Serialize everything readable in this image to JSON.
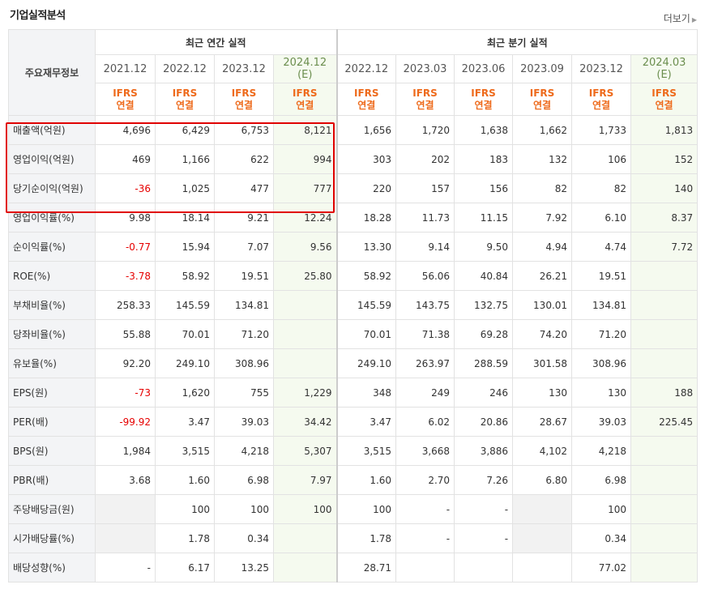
{
  "title": "기업실적분석",
  "more_label": "더보기",
  "header": {
    "label_col": "주요재무정보",
    "groups": [
      {
        "label": "최근 연간 실적"
      },
      {
        "label": "최근 분기 실적"
      }
    ],
    "periods": [
      {
        "label": "2021.12",
        "est": ""
      },
      {
        "label": "2022.12",
        "est": ""
      },
      {
        "label": "2023.12",
        "est": ""
      },
      {
        "label": "2024.12",
        "est": "(E)"
      },
      {
        "label": "2022.12",
        "est": ""
      },
      {
        "label": "2023.03",
        "est": ""
      },
      {
        "label": "2023.06",
        "est": ""
      },
      {
        "label": "2023.09",
        "est": ""
      },
      {
        "label": "2023.12",
        "est": ""
      },
      {
        "label": "2024.03",
        "est": "(E)"
      }
    ],
    "ifrs_line1": "IFRS",
    "ifrs_line2": "연결"
  },
  "rows": [
    {
      "label": "매출액(억원)",
      "values": [
        "4,696",
        "6,429",
        "6,753",
        "8,121",
        "1,656",
        "1,720",
        "1,638",
        "1,662",
        "1,733",
        "1,813"
      ]
    },
    {
      "label": "영업이익(억원)",
      "values": [
        "469",
        "1,166",
        "622",
        "994",
        "303",
        "202",
        "183",
        "132",
        "106",
        "152"
      ]
    },
    {
      "label": "당기순이익(억원)",
      "values": [
        "-36",
        "1,025",
        "477",
        "777",
        "220",
        "157",
        "156",
        "82",
        "82",
        "140"
      ]
    },
    {
      "label": "영업이익률(%)",
      "values": [
        "9.98",
        "18.14",
        "9.21",
        "12.24",
        "18.28",
        "11.73",
        "11.15",
        "7.92",
        "6.10",
        "8.37"
      ]
    },
    {
      "label": "순이익률(%)",
      "values": [
        "-0.77",
        "15.94",
        "7.07",
        "9.56",
        "13.30",
        "9.14",
        "9.50",
        "4.94",
        "4.74",
        "7.72"
      ]
    },
    {
      "label": "ROE(%)",
      "values": [
        "-3.78",
        "58.92",
        "19.51",
        "25.80",
        "58.92",
        "56.06",
        "40.84",
        "26.21",
        "19.51",
        ""
      ]
    },
    {
      "label": "부채비율(%)",
      "values": [
        "258.33",
        "145.59",
        "134.81",
        "",
        "145.59",
        "143.75",
        "132.75",
        "130.01",
        "134.81",
        ""
      ]
    },
    {
      "label": "당좌비율(%)",
      "values": [
        "55.88",
        "70.01",
        "71.20",
        "",
        "70.01",
        "71.38",
        "69.28",
        "74.20",
        "71.20",
        ""
      ]
    },
    {
      "label": "유보율(%)",
      "values": [
        "92.20",
        "249.10",
        "308.96",
        "",
        "249.10",
        "263.97",
        "288.59",
        "301.58",
        "308.96",
        ""
      ]
    },
    {
      "label": "EPS(원)",
      "values": [
        "-73",
        "1,620",
        "755",
        "1,229",
        "348",
        "249",
        "246",
        "130",
        "130",
        "188"
      ]
    },
    {
      "label": "PER(배)",
      "values": [
        "-99.92",
        "3.47",
        "39.03",
        "34.42",
        "3.47",
        "6.02",
        "20.86",
        "28.67",
        "39.03",
        "225.45"
      ]
    },
    {
      "label": "BPS(원)",
      "values": [
        "1,984",
        "3,515",
        "4,218",
        "5,307",
        "3,515",
        "3,668",
        "3,886",
        "4,102",
        "4,218",
        ""
      ]
    },
    {
      "label": "PBR(배)",
      "values": [
        "3.68",
        "1.60",
        "6.98",
        "7.97",
        "1.60",
        "2.70",
        "7.26",
        "6.80",
        "6.98",
        ""
      ]
    },
    {
      "label": "주당배당금(원)",
      "values": [
        "",
        "100",
        "100",
        "100",
        "100",
        "-",
        "-",
        "",
        "100",
        ""
      ]
    },
    {
      "label": "시가배당률(%)",
      "values": [
        "",
        "1.78",
        "0.34",
        "",
        "1.78",
        "-",
        "-",
        "",
        "0.34",
        ""
      ]
    },
    {
      "label": "배당성향(%)",
      "values": [
        "-",
        "6.17",
        "13.25",
        "",
        "28.71",
        "",
        "",
        "",
        "77.02",
        ""
      ]
    }
  ],
  "colors": {
    "negative": "#e60000",
    "ifrs": "#ee6a1b",
    "estimate_bg": "#f5faef",
    "highlight_box": "#e00000"
  }
}
